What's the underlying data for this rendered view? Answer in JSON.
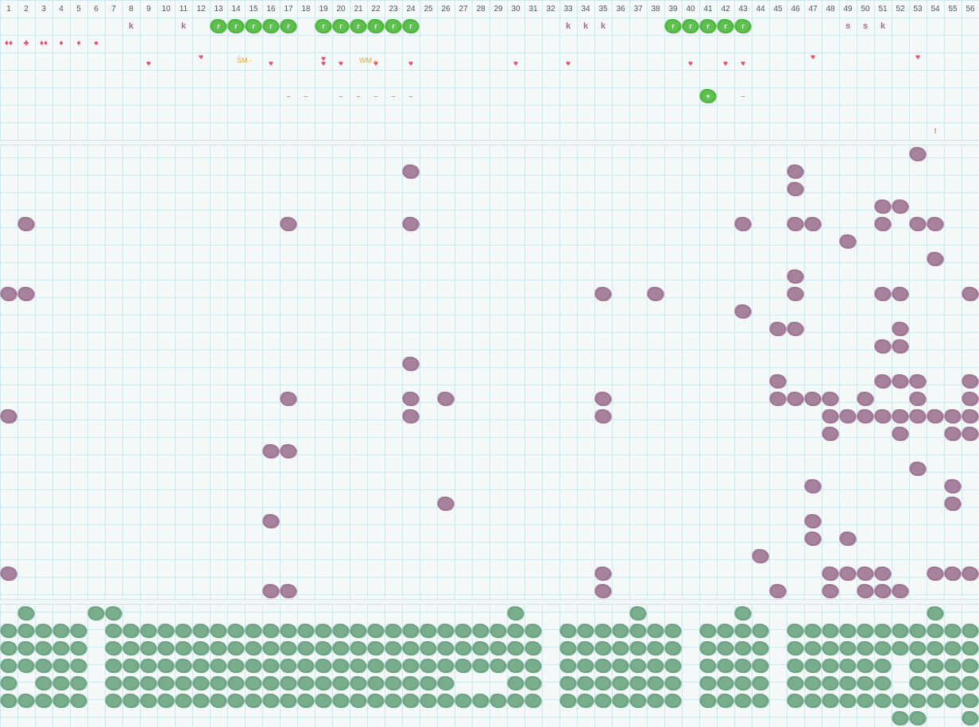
{
  "columns": [
    "1",
    "2",
    "3",
    "4",
    "5",
    "6",
    "7",
    "8",
    "9",
    "10",
    "11",
    "12",
    "13",
    "14",
    "15",
    "16",
    "17",
    "18",
    "19",
    "20",
    "21",
    "22",
    "23",
    "24",
    "25",
    "26",
    "27",
    "28",
    "29",
    "30",
    "31",
    "32",
    "33",
    "34",
    "35",
    "36",
    "37",
    "38",
    "39",
    "40",
    "41",
    "42",
    "43",
    "44",
    "45",
    "46",
    "47",
    "48",
    "49",
    "50",
    "51",
    "52",
    "53",
    "54",
    "55",
    "56"
  ],
  "row1": {
    "k_cols": [
      8,
      11,
      33,
      34,
      35
    ],
    "s_cols": [
      49,
      50
    ],
    "k2_cols": [
      51
    ],
    "green_r_cols": [
      13,
      14,
      15,
      16,
      17,
      19,
      20,
      21,
      22,
      23,
      24,
      39,
      40,
      41,
      42,
      43
    ],
    "k_text": "k",
    "s_text": "s",
    "r_text": "r"
  },
  "row2": {
    "drops": [
      {
        "col": 1,
        "glyph": "♦♦"
      },
      {
        "col": 2,
        "glyph": "♣"
      },
      {
        "col": 3,
        "glyph": "♦♦"
      },
      {
        "col": 4,
        "glyph": "♦"
      },
      {
        "col": 5,
        "glyph": "♦"
      },
      {
        "col": 6,
        "glyph": "●"
      }
    ]
  },
  "row3": {
    "labels": [
      {
        "col": 15,
        "text": "ŚM -"
      },
      {
        "col": 22,
        "text": "WM -"
      }
    ]
  },
  "hearts": [
    {
      "col": 9,
      "row": 4.2
    },
    {
      "col": 12,
      "row": 3.8
    },
    {
      "col": 16,
      "row": 4.2
    },
    {
      "col": 19,
      "row": 3.9
    },
    {
      "col": 19,
      "row": 4.2
    },
    {
      "col": 20,
      "row": 4.2
    },
    {
      "col": 22,
      "row": 4.2
    },
    {
      "col": 24,
      "row": 4.2
    },
    {
      "col": 30,
      "row": 4.2
    },
    {
      "col": 33,
      "row": 4.2
    },
    {
      "col": 40,
      "row": 4.2
    },
    {
      "col": 42,
      "row": 4.2
    },
    {
      "col": 43,
      "row": 4.2
    },
    {
      "col": 47,
      "row": 3.8
    },
    {
      "col": 53,
      "row": 3.8
    }
  ],
  "dashes": [
    17,
    18,
    20,
    21,
    22,
    23,
    24,
    43
  ],
  "dash_text": "–",
  "plus_button": {
    "col": 41,
    "text": "+"
  },
  "bang": {
    "col": 54,
    "text": "!"
  },
  "purple_cells": [
    [
      8,
      53
    ],
    [
      9,
      24
    ],
    [
      9,
      46
    ],
    [
      10,
      46
    ],
    [
      11,
      51
    ],
    [
      11,
      52
    ],
    [
      12,
      2
    ],
    [
      12,
      17
    ],
    [
      12,
      24
    ],
    [
      12,
      43
    ],
    [
      12,
      46
    ],
    [
      12,
      47
    ],
    [
      12,
      51
    ],
    [
      12,
      53
    ],
    [
      12,
      54
    ],
    [
      13,
      49
    ],
    [
      14,
      54
    ],
    [
      15,
      46
    ],
    [
      16,
      1
    ],
    [
      16,
      2
    ],
    [
      16,
      35
    ],
    [
      16,
      38
    ],
    [
      16,
      46
    ],
    [
      16,
      51
    ],
    [
      16,
      52
    ],
    [
      16,
      56
    ],
    [
      17,
      43
    ],
    [
      18,
      45
    ],
    [
      18,
      46
    ],
    [
      18,
      52
    ],
    [
      19,
      51
    ],
    [
      19,
      52
    ],
    [
      20,
      24
    ],
    [
      21,
      45
    ],
    [
      21,
      51
    ],
    [
      21,
      52
    ],
    [
      21,
      53
    ],
    [
      21,
      56
    ],
    [
      22,
      17
    ],
    [
      22,
      24
    ],
    [
      22,
      26
    ],
    [
      22,
      35
    ],
    [
      22,
      45
    ],
    [
      22,
      46
    ],
    [
      22,
      47
    ],
    [
      22,
      48
    ],
    [
      22,
      50
    ],
    [
      22,
      53
    ],
    [
      22,
      56
    ],
    [
      23,
      1
    ],
    [
      23,
      24
    ],
    [
      23,
      35
    ],
    [
      23,
      48
    ],
    [
      23,
      49
    ],
    [
      23,
      50
    ],
    [
      23,
      51
    ],
    [
      23,
      52
    ],
    [
      23,
      53
    ],
    [
      23,
      54
    ],
    [
      23,
      55
    ],
    [
      23,
      56
    ],
    [
      24,
      48
    ],
    [
      24,
      52
    ],
    [
      24,
      55
    ],
    [
      24,
      56
    ],
    [
      25,
      16
    ],
    [
      25,
      17
    ],
    [
      26,
      53
    ],
    [
      27,
      47
    ],
    [
      27,
      55
    ],
    [
      28,
      26
    ],
    [
      28,
      55
    ],
    [
      29,
      16
    ],
    [
      29,
      47
    ],
    [
      30,
      47
    ],
    [
      30,
      49
    ],
    [
      31,
      44
    ],
    [
      32,
      1
    ],
    [
      32,
      35
    ],
    [
      32,
      48
    ],
    [
      32,
      49
    ],
    [
      32,
      50
    ],
    [
      32,
      51
    ],
    [
      32,
      54
    ],
    [
      32,
      55
    ],
    [
      32,
      56
    ],
    [
      33,
      16
    ],
    [
      33,
      17
    ],
    [
      33,
      35
    ],
    [
      33,
      45
    ],
    [
      33,
      48
    ],
    [
      33,
      50
    ],
    [
      33,
      51
    ],
    [
      33,
      52
    ]
  ],
  "green_top": [
    2,
    6,
    7,
    30,
    37,
    43,
    54
  ],
  "green_row_full_exclude": [
    6,
    32,
    40,
    45
  ],
  "green_rows": 5,
  "green_row_gaps": {
    "1": [
      6,
      32,
      40,
      45
    ],
    "2": [
      6,
      32,
      40,
      45
    ],
    "3": [
      6,
      32,
      40,
      45,
      52
    ],
    "4": [
      2,
      6,
      27,
      28,
      29,
      32,
      40,
      45,
      52
    ],
    "5": [
      6,
      32,
      40,
      45
    ]
  },
  "green_bottom": [
    52,
    53,
    56
  ]
}
